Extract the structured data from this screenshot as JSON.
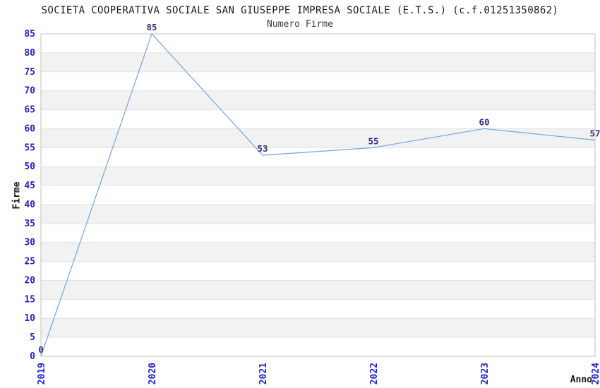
{
  "chart_data": {
    "type": "line",
    "title": "SOCIETA COOPERATIVA SOCIALE SAN GIUSEPPE IMPRESA SOCIALE (E.T.S.) (c.f.01251350862)",
    "subtitle": "Numero Firme",
    "xlabel": "Anno",
    "ylabel": "Firme",
    "x": [
      2019,
      2020,
      2021,
      2022,
      2023,
      2024
    ],
    "series": [
      {
        "name": "Numero Firme",
        "values": [
          0,
          85,
          53,
          55,
          60,
          57
        ]
      }
    ],
    "ylim": [
      0,
      85
    ],
    "ytick_step": 5,
    "grid": true,
    "banded_background": true,
    "legend_position": "none",
    "x_tick_rotation_deg": -90,
    "colors": {
      "line": "#7cabdf",
      "tick_label": "#2222cc",
      "data_label": "#31317f",
      "band": "#f2f2f2",
      "gridline": "#e2e2e2",
      "plot_border": "#c0c0c0",
      "title_text": "#1a1a1a",
      "subtitle_text": "#3d3d3d",
      "axis_title_text": "#1a1a1a",
      "background": "#ffffff"
    }
  }
}
